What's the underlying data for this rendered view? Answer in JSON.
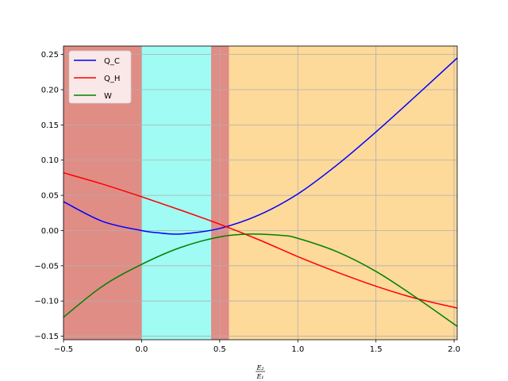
{
  "chart_data": {
    "type": "line",
    "title": "",
    "xlabel": {
      "num": "E₂",
      "den": "E₁"
    },
    "ylabel": "",
    "xlim": [
      -0.5,
      2.02
    ],
    "ylim": [
      -0.155,
      0.262
    ],
    "grid": true,
    "legend_position": "upper-left",
    "x_ticks": [
      -0.5,
      0.0,
      0.5,
      1.0,
      1.5,
      2.0
    ],
    "x_tick_labels": [
      "−0.5",
      "0.0",
      "0.5",
      "1.0",
      "1.5",
      "2.0"
    ],
    "y_ticks": [
      -0.15,
      -0.1,
      -0.05,
      0.0,
      0.05,
      0.1,
      0.15,
      0.2,
      0.25
    ],
    "y_tick_labels": [
      "−0.15",
      "−0.10",
      "−0.05",
      "0.00",
      "0.05",
      "0.10",
      "0.15",
      "0.20",
      "0.25"
    ],
    "regions": [
      {
        "x0": -0.5,
        "x1": 0.0,
        "color": "#e08d86"
      },
      {
        "x0": 0.0,
        "x1": 0.445,
        "color": "#9ffbf3"
      },
      {
        "x0": 0.445,
        "x1": 0.56,
        "color": "#e08d86"
      },
      {
        "x0": 0.56,
        "x1": 2.02,
        "color": "#fdd99a"
      }
    ],
    "series": [
      {
        "name": "Q_C",
        "color": "#0000ff",
        "x": [
          -0.5,
          -0.25,
          0.0,
          0.1,
          0.2,
          0.3,
          0.5,
          0.75,
          1.0,
          1.25,
          1.5,
          1.75,
          2.02
        ],
        "y": [
          0.041,
          0.013,
          0.0,
          -0.003,
          -0.005,
          -0.004,
          0.003,
          0.022,
          0.052,
          0.093,
          0.14,
          0.19,
          0.245
        ]
      },
      {
        "name": "Q_H",
        "color": "#ff0000",
        "x": [
          -0.5,
          -0.25,
          0.0,
          0.25,
          0.5,
          0.75,
          1.0,
          1.25,
          1.5,
          1.75,
          2.02
        ],
        "y": [
          0.082,
          0.066,
          0.048,
          0.029,
          0.009,
          -0.013,
          -0.037,
          -0.059,
          -0.079,
          -0.096,
          -0.11
        ]
      },
      {
        "name": "W",
        "color": "#008000",
        "x": [
          -0.5,
          -0.25,
          0.0,
          0.25,
          0.5,
          0.7,
          0.9,
          1.0,
          1.25,
          1.5,
          1.75,
          2.02
        ],
        "y": [
          -0.123,
          -0.079,
          -0.048,
          -0.024,
          -0.009,
          -0.005,
          -0.007,
          -0.011,
          -0.03,
          -0.058,
          -0.094,
          -0.136
        ]
      }
    ]
  }
}
